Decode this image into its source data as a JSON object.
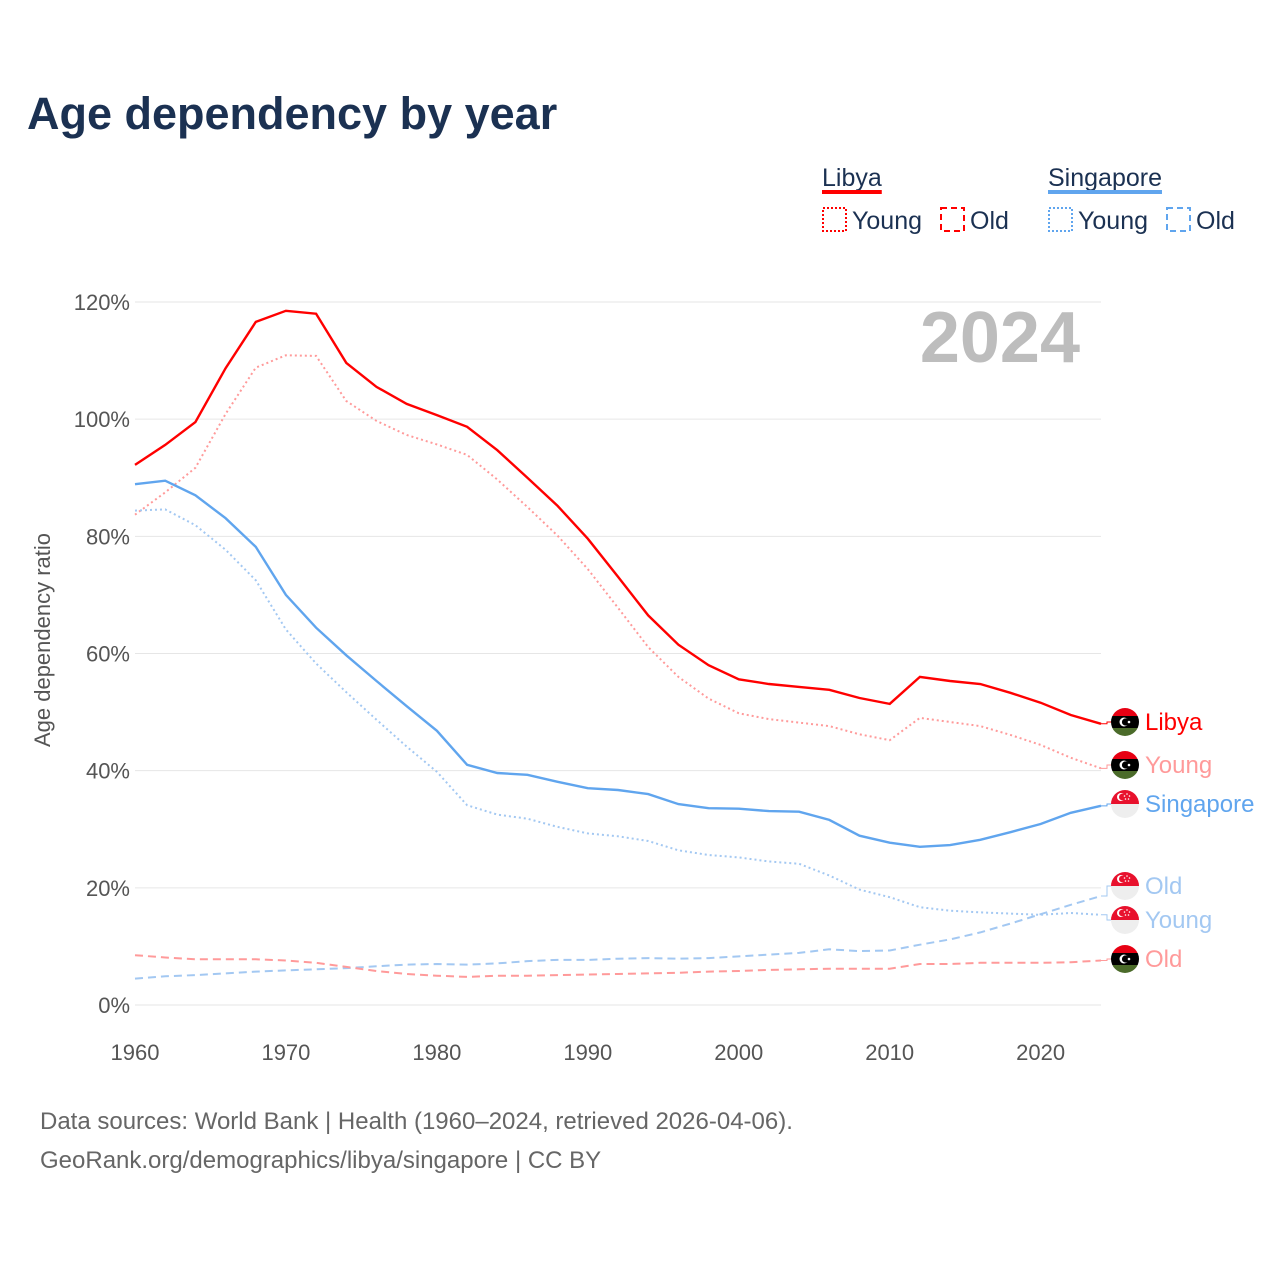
{
  "title": "Age dependency by year",
  "year_badge": "2024",
  "legend": {
    "groups": [
      {
        "name": "Libya",
        "color": "#ff0000",
        "items": [
          "Young",
          "Old"
        ]
      },
      {
        "name": "Singapore",
        "color": "#60a5ee",
        "items": [
          "Young",
          "Old"
        ]
      }
    ]
  },
  "footer": {
    "line1": "Data sources: World Bank | Health (1960–2024, retrieved 2026-04-06).",
    "line2": "GeoRank.org/demographics/libya/singapore | CC BY"
  },
  "chart_data": {
    "type": "line",
    "title": "Age dependency by year",
    "xlabel": "",
    "ylabel": "Age dependency ratio",
    "xlim": [
      1960,
      2024
    ],
    "ylim": [
      0,
      120
    ],
    "xticks": [
      "1960",
      "1970",
      "1980",
      "1990",
      "2000",
      "2010",
      "2020"
    ],
    "yticks": [
      "0%",
      "20%",
      "40%",
      "60%",
      "80%",
      "100%",
      "120%"
    ],
    "grid": true,
    "x": [
      1960,
      1962,
      1964,
      1966,
      1968,
      1970,
      1972,
      1974,
      1976,
      1978,
      1980,
      1982,
      1984,
      1986,
      1988,
      1990,
      1992,
      1994,
      1996,
      1998,
      2000,
      2002,
      2004,
      2006,
      2008,
      2010,
      2012,
      2014,
      2016,
      2018,
      2020,
      2022,
      2024
    ],
    "series": [
      {
        "name": "Libya",
        "label": "Libya",
        "country": "libya",
        "style": "solid",
        "color": "#ff0000",
        "values": [
          92.2,
          95.6,
          99.5,
          108.7,
          116.6,
          118.5,
          118.0,
          109.6,
          105.5,
          102.6,
          100.7,
          98.7,
          94.7,
          90.0,
          85.2,
          79.6,
          73.1,
          66.5,
          61.5,
          58.0,
          55.6,
          54.8,
          54.3,
          53.8,
          52.4,
          51.4,
          56.0,
          55.3,
          54.8,
          53.3,
          51.6,
          49.5,
          48.0
        ]
      },
      {
        "name": "Libya Young",
        "label": "Young",
        "country": "libya",
        "style": "dotted",
        "color": "#ff9a9a",
        "values": [
          83.7,
          87.5,
          91.7,
          100.9,
          108.8,
          110.9,
          110.8,
          103.1,
          99.7,
          97.3,
          95.7,
          93.9,
          89.7,
          85.0,
          80.1,
          74.4,
          67.8,
          61.1,
          56.0,
          52.3,
          49.8,
          48.8,
          48.2,
          47.6,
          46.2,
          45.2,
          49.0,
          48.3,
          47.6,
          46.1,
          44.4,
          42.2,
          40.4
        ]
      },
      {
        "name": "Singapore",
        "label": "Singapore",
        "country": "singapore",
        "style": "solid",
        "color": "#60a5ee",
        "values": [
          88.9,
          89.5,
          87.0,
          83.1,
          78.2,
          70.0,
          64.4,
          59.7,
          55.3,
          51.0,
          46.8,
          41.0,
          39.6,
          39.3,
          38.1,
          37.0,
          36.7,
          36.0,
          34.3,
          33.6,
          33.5,
          33.1,
          33.0,
          31.6,
          28.9,
          27.7,
          27.0,
          27.3,
          28.2,
          29.5,
          30.9,
          32.8,
          34.0
        ]
      },
      {
        "name": "Singapore Old",
        "label": "Old",
        "country": "singapore",
        "style": "dashed",
        "color": "#a3c8f2",
        "values": [
          4.5,
          4.9,
          5.1,
          5.4,
          5.7,
          5.9,
          6.1,
          6.3,
          6.6,
          6.9,
          7.0,
          6.9,
          7.1,
          7.5,
          7.7,
          7.7,
          7.9,
          8.0,
          7.9,
          8.0,
          8.3,
          8.6,
          8.9,
          9.5,
          9.2,
          9.3,
          10.3,
          11.2,
          12.4,
          13.9,
          15.5,
          17.1,
          18.6
        ]
      },
      {
        "name": "Singapore Young",
        "label": "Young",
        "country": "singapore",
        "style": "dotted",
        "color": "#a3c8f2",
        "values": [
          84.4,
          84.6,
          81.9,
          77.7,
          72.5,
          64.1,
          58.3,
          53.4,
          48.7,
          44.1,
          39.8,
          34.1,
          32.5,
          31.8,
          30.4,
          29.3,
          28.8,
          28.0,
          26.4,
          25.6,
          25.2,
          24.5,
          24.1,
          22.1,
          19.7,
          18.4,
          16.7,
          16.1,
          15.8,
          15.6,
          15.4,
          15.7,
          15.4
        ]
      },
      {
        "name": "Libya Old",
        "label": "Old",
        "country": "libya",
        "style": "dashed",
        "color": "#ff9a9a",
        "values": [
          8.5,
          8.1,
          7.8,
          7.8,
          7.8,
          7.6,
          7.2,
          6.5,
          5.8,
          5.3,
          5.0,
          4.8,
          5.0,
          5.0,
          5.1,
          5.2,
          5.3,
          5.4,
          5.5,
          5.7,
          5.8,
          6.0,
          6.1,
          6.2,
          6.2,
          6.2,
          7.0,
          7.0,
          7.2,
          7.2,
          7.2,
          7.3,
          7.6
        ]
      }
    ]
  }
}
